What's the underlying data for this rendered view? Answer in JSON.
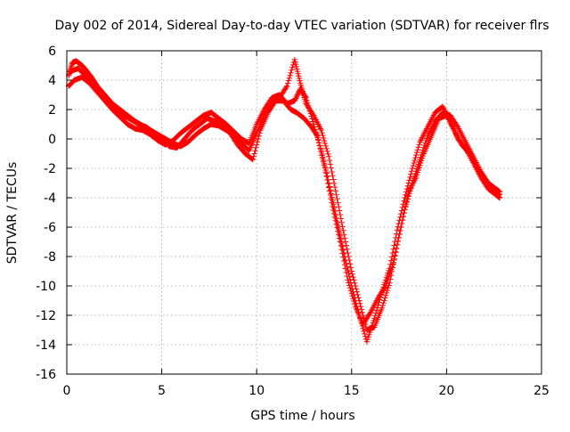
{
  "chart_data": {
    "type": "scatter",
    "title": "Day 002 of 2014, Sidereal Day-to-day VTEC variation (SDTVAR) for receiver flrs",
    "xlabel": "GPS time / hours",
    "ylabel": "SDTVAR / TECUs",
    "xlim": [
      0,
      25
    ],
    "ylim": [
      -16,
      6
    ],
    "x_ticks": [
      0,
      5,
      10,
      15,
      20,
      25
    ],
    "y_ticks": [
      -16,
      -14,
      -12,
      -10,
      -8,
      -6,
      -4,
      -2,
      0,
      2,
      4,
      6
    ],
    "grid": true,
    "marker": "+",
    "series_color": "#ff0000",
    "series": [
      {
        "name": "SDTVAR",
        "tracks": [
          [
            [
              0.1,
              4.3
            ],
            [
              0.3,
              5.2
            ],
            [
              0.5,
              5.3
            ],
            [
              0.8,
              5.0
            ],
            [
              1.0,
              4.7
            ],
            [
              1.3,
              4.2
            ],
            [
              1.6,
              3.6
            ],
            [
              2.0,
              3.0
            ],
            [
              2.4,
              2.4
            ],
            [
              2.8,
              2.0
            ],
            [
              3.2,
              1.6
            ],
            [
              3.6,
              1.2
            ],
            [
              4.0,
              0.9
            ],
            [
              4.4,
              0.6
            ],
            [
              4.8,
              0.3
            ],
            [
              5.2,
              0.0
            ],
            [
              5.6,
              -0.3
            ],
            [
              6.0,
              -0.5
            ],
            [
              6.4,
              -0.2
            ],
            [
              6.8,
              0.3
            ],
            [
              7.2,
              0.7
            ],
            [
              7.6,
              1.0
            ],
            [
              8.0,
              0.9
            ],
            [
              8.4,
              0.6
            ],
            [
              8.8,
              0.2
            ],
            [
              9.2,
              -0.3
            ],
            [
              9.6,
              -0.8
            ],
            [
              10.0,
              0.4
            ],
            [
              10.4,
              1.6
            ],
            [
              10.8,
              2.4
            ],
            [
              11.2,
              2.8
            ],
            [
              11.6,
              3.6
            ],
            [
              12.0,
              5.4
            ],
            [
              12.3,
              3.8
            ],
            [
              12.6,
              2.4
            ],
            [
              13.0,
              1.6
            ],
            [
              13.4,
              0.6
            ],
            [
              13.8,
              -1.2
            ],
            [
              14.2,
              -3.8
            ],
            [
              14.6,
              -6.5
            ],
            [
              15.0,
              -9.0
            ],
            [
              15.4,
              -11.0
            ],
            [
              15.8,
              -13.0
            ],
            [
              16.2,
              -12.8
            ],
            [
              16.6,
              -11.5
            ],
            [
              17.0,
              -9.8
            ],
            [
              17.4,
              -7.2
            ],
            [
              17.8,
              -4.8
            ],
            [
              18.2,
              -3.0
            ],
            [
              18.6,
              -1.4
            ],
            [
              19.0,
              0.2
            ],
            [
              19.4,
              1.2
            ],
            [
              19.8,
              1.8
            ],
            [
              20.2,
              1.6
            ],
            [
              20.6,
              0.8
            ],
            [
              21.0,
              -0.2
            ],
            [
              21.4,
              -1.2
            ],
            [
              21.8,
              -2.2
            ],
            [
              22.2,
              -3.0
            ],
            [
              22.6,
              -3.4
            ],
            [
              22.8,
              -3.6
            ]
          ],
          [
            [
              0.1,
              3.6
            ],
            [
              0.4,
              4.0
            ],
            [
              0.8,
              4.2
            ],
            [
              1.2,
              3.8
            ],
            [
              1.6,
              3.2
            ],
            [
              2.0,
              2.6
            ],
            [
              2.4,
              2.0
            ],
            [
              2.8,
              1.5
            ],
            [
              3.2,
              1.0
            ],
            [
              3.6,
              0.7
            ],
            [
              4.0,
              0.6
            ],
            [
              4.4,
              0.3
            ],
            [
              4.8,
              -0.1
            ],
            [
              5.2,
              -0.4
            ],
            [
              5.6,
              -0.1
            ],
            [
              6.0,
              0.4
            ],
            [
              6.4,
              0.8
            ],
            [
              6.8,
              1.2
            ],
            [
              7.2,
              1.6
            ],
            [
              7.6,
              1.8
            ],
            [
              8.0,
              1.4
            ],
            [
              8.4,
              1.0
            ],
            [
              8.8,
              0.5
            ],
            [
              9.2,
              0.0
            ],
            [
              9.6,
              -0.3
            ],
            [
              10.0,
              1.0
            ],
            [
              10.4,
              2.0
            ],
            [
              10.8,
              2.8
            ],
            [
              11.2,
              3.0
            ],
            [
              11.6,
              2.4
            ],
            [
              12.0,
              2.6
            ],
            [
              12.3,
              3.4
            ],
            [
              12.6,
              2.8
            ],
            [
              13.0,
              1.0
            ],
            [
              13.4,
              -0.8
            ],
            [
              13.8,
              -3.0
            ],
            [
              14.2,
              -5.4
            ],
            [
              14.6,
              -7.8
            ],
            [
              15.0,
              -10.0
            ],
            [
              15.4,
              -12.0
            ],
            [
              15.8,
              -13.8
            ],
            [
              16.2,
              -12.2
            ],
            [
              16.6,
              -10.4
            ],
            [
              17.0,
              -8.8
            ],
            [
              17.4,
              -6.2
            ],
            [
              17.8,
              -4.0
            ],
            [
              18.2,
              -2.0
            ],
            [
              18.6,
              -0.2
            ],
            [
              19.0,
              0.8
            ],
            [
              19.4,
              1.8
            ],
            [
              19.8,
              2.2
            ],
            [
              20.2,
              1.2
            ],
            [
              20.6,
              0.0
            ],
            [
              21.0,
              -0.6
            ],
            [
              21.4,
              -1.6
            ],
            [
              21.8,
              -2.6
            ],
            [
              22.2,
              -3.4
            ],
            [
              22.6,
              -3.8
            ],
            [
              22.8,
              -4.0
            ]
          ],
          [
            [
              0.2,
              4.6
            ],
            [
              0.6,
              4.8
            ],
            [
              1.0,
              4.3
            ],
            [
              1.4,
              3.7
            ],
            [
              1.8,
              3.1
            ],
            [
              2.2,
              2.6
            ],
            [
              2.6,
              2.1
            ],
            [
              3.0,
              1.6
            ],
            [
              3.4,
              1.3
            ],
            [
              3.8,
              1.0
            ],
            [
              4.2,
              0.8
            ],
            [
              4.6,
              0.4
            ],
            [
              5.0,
              0.0
            ],
            [
              5.4,
              -0.5
            ],
            [
              5.8,
              -0.6
            ],
            [
              6.2,
              0.0
            ],
            [
              6.6,
              0.6
            ],
            [
              7.0,
              1.0
            ],
            [
              7.4,
              1.4
            ],
            [
              7.8,
              1.2
            ],
            [
              8.2,
              1.1
            ],
            [
              8.6,
              0.4
            ],
            [
              9.0,
              -0.4
            ],
            [
              9.4,
              -1.0
            ],
            [
              9.8,
              -1.4
            ],
            [
              10.2,
              0.6
            ],
            [
              10.6,
              1.8
            ],
            [
              11.0,
              2.6
            ],
            [
              11.4,
              2.6
            ],
            [
              11.8,
              2.0
            ],
            [
              12.1,
              1.8
            ],
            [
              12.5,
              1.4
            ],
            [
              12.9,
              0.8
            ],
            [
              13.2,
              0.2
            ],
            [
              13.6,
              -2.0
            ],
            [
              14.0,
              -4.6
            ],
            [
              14.4,
              -7.0
            ],
            [
              14.8,
              -9.6
            ],
            [
              15.2,
              -11.4
            ],
            [
              15.6,
              -12.6
            ],
            [
              16.0,
              -11.8
            ],
            [
              16.4,
              -10.8
            ],
            [
              16.8,
              -10.0
            ],
            [
              17.2,
              -8.4
            ],
            [
              17.6,
              -6.0
            ],
            [
              18.0,
              -3.6
            ],
            [
              18.4,
              -2.6
            ],
            [
              18.8,
              -1.0
            ],
            [
              19.2,
              0.2
            ],
            [
              19.6,
              1.4
            ],
            [
              20.0,
              1.6
            ],
            [
              20.4,
              0.6
            ],
            [
              20.8,
              -0.4
            ],
            [
              21.2,
              -1.0
            ],
            [
              21.6,
              -2.0
            ],
            [
              22.0,
              -2.8
            ],
            [
              22.4,
              -3.4
            ],
            [
              22.8,
              -3.8
            ]
          ]
        ]
      }
    ]
  }
}
